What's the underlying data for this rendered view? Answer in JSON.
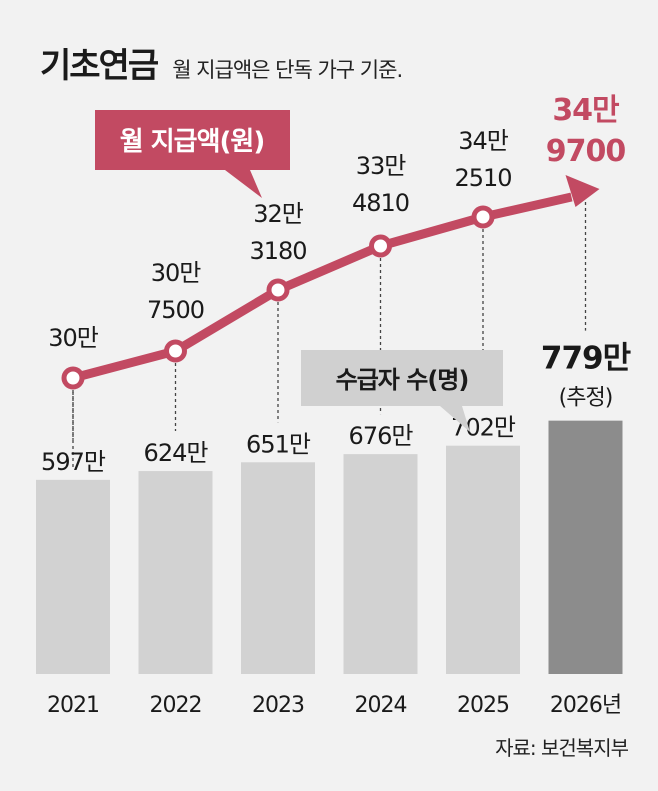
{
  "header": {
    "title": "기초연금",
    "subtitle": "월 지급액은 단독 가구 기준."
  },
  "source": "자료: 보건복지부",
  "colors": {
    "line": "#c24a62",
    "bar": "#d2d2d2",
    "bar_highlight": "#8c8c8c",
    "background": "#f2f2f2",
    "callout_gray": "#d0d0d0"
  },
  "chart_data": {
    "type": "bar",
    "categories": [
      "2021",
      "2022",
      "2023",
      "2024",
      "2025",
      "2026년"
    ],
    "legend": {
      "line_label": "월 지급액(원)",
      "bar_label": "수급자 수(명)"
    },
    "series": [
      {
        "name": "월 지급액(원)",
        "type": "line",
        "values": [
          300000,
          307500,
          323180,
          334810,
          342510,
          349700
        ],
        "label_lines": [
          [
            "30만"
          ],
          [
            "30만",
            "7500"
          ],
          [
            "32만",
            "3180"
          ],
          [
            "33만",
            "4810"
          ],
          [
            "34만",
            "2510"
          ],
          [
            "34만",
            "9700"
          ]
        ],
        "ylim": [
          285000,
          360000
        ]
      },
      {
        "name": "수급자 수(명)",
        "type": "bar",
        "values": [
          5970000,
          6240000,
          6510000,
          6760000,
          7020000,
          7790000
        ],
        "labels": [
          "597만",
          "624만",
          "651만",
          "676만",
          "702만",
          "779만"
        ],
        "highlight_note": "(추정)",
        "ylim": [
          0,
          8800000
        ]
      }
    ]
  }
}
